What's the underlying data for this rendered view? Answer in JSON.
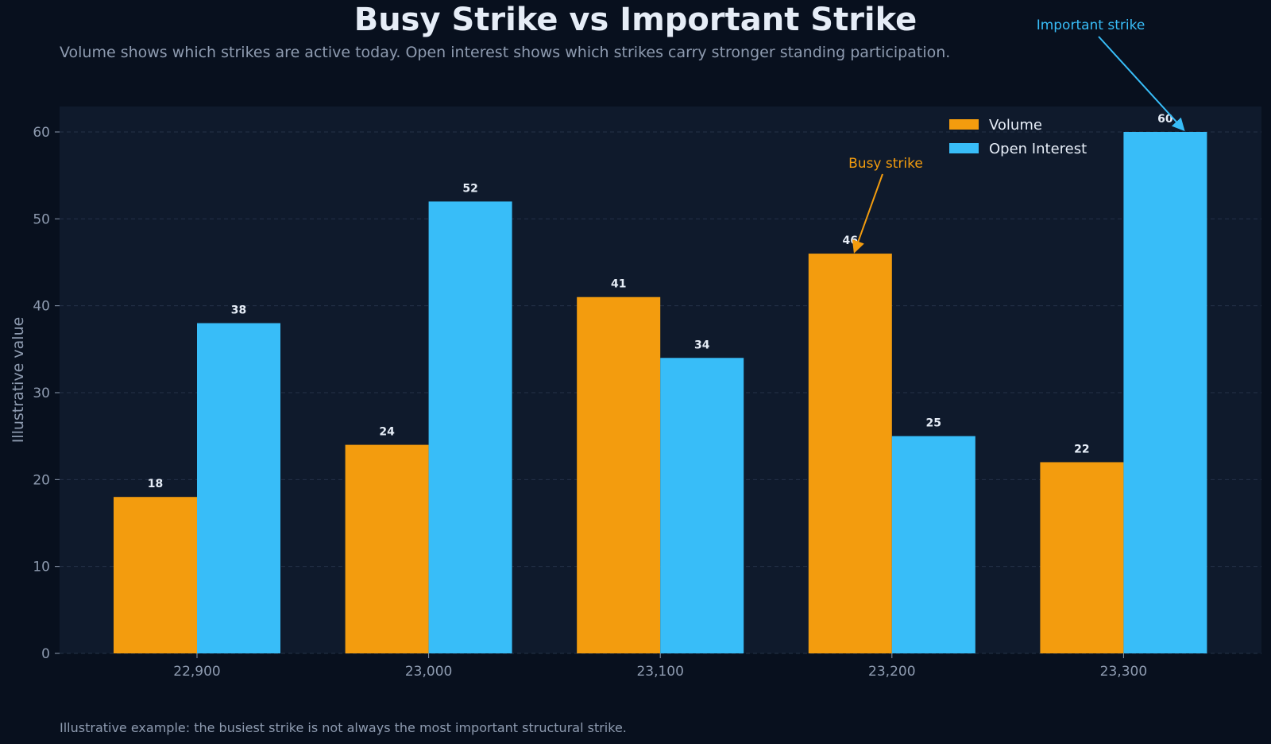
{
  "chart_data": {
    "type": "bar",
    "title": "Busy Strike vs Important Strike",
    "subtitle": "Volume shows which strikes are active today. Open interest shows which strikes carry stronger standing participation.",
    "footnote": "Illustrative example: the busiest strike is not always the most important structural strike.",
    "xlabel": "",
    "ylabel": "Illustrative value",
    "ylim": [
      0,
      63
    ],
    "yticks": [
      0,
      10,
      20,
      30,
      40,
      50,
      60
    ],
    "grid": true,
    "legend_position": "top-right",
    "categories": [
      "22,900",
      "23,000",
      "23,100",
      "23,200",
      "23,300"
    ],
    "series": [
      {
        "name": "Volume",
        "color": "#f39c0e",
        "values": [
          18,
          24,
          41,
          46,
          22
        ]
      },
      {
        "name": "Open Interest",
        "color": "#38bdf8",
        "values": [
          38,
          52,
          34,
          25,
          60
        ]
      }
    ],
    "annotations": [
      {
        "text": "Busy strike",
        "category": "23,200",
        "series": "Volume",
        "color": "#f39c0e"
      },
      {
        "text": "Important strike",
        "category": "23,300",
        "series": "Open Interest",
        "color": "#38bdf8"
      }
    ]
  },
  "colors": {
    "background": "#08101e",
    "plot_background": "#0f1a2c",
    "text": "#e6edf7",
    "muted": "#8e9bb0"
  }
}
